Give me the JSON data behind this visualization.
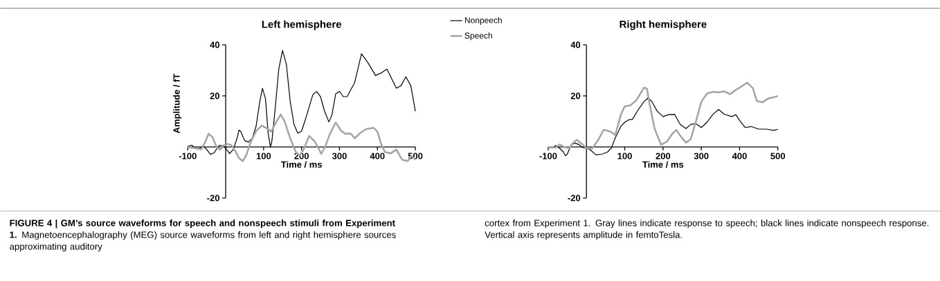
{
  "chart_data": [
    {
      "type": "line",
      "title": "Left hemisphere",
      "xlabel": "Time / ms",
      "ylabel": "Amplitude / fT",
      "xlim": [
        -100,
        500
      ],
      "ylim": [
        -20,
        40
      ],
      "xticks": [
        -100,
        100,
        200,
        300,
        400,
        500
      ],
      "yticks": [
        -20,
        20,
        40
      ],
      "legend": "right",
      "series": [
        {
          "name": "Nonpeech",
          "color": "#000000",
          "x": [
            -100,
            -90,
            -80,
            -70,
            -60,
            -50,
            -40,
            -30,
            -20,
            -15,
            -5,
            5,
            10,
            20,
            30,
            35,
            40,
            50,
            60,
            70,
            80,
            90,
            97,
            105,
            112,
            118,
            122,
            130,
            140,
            150,
            160,
            170,
            180,
            190,
            200,
            210,
            230,
            240,
            250,
            260,
            272,
            280,
            290,
            300,
            310,
            320,
            340,
            358,
            375,
            395,
            410,
            425,
            440,
            450,
            462,
            475,
            488,
            500
          ],
          "values": [
            0.3,
            0.7,
            -0.4,
            -0.7,
            0.5,
            -1,
            -2.9,
            -2.2,
            0.2,
            0.7,
            0.3,
            -1.5,
            -2.6,
            -1,
            3.4,
            6.6,
            6,
            2.5,
            1.9,
            3.4,
            8,
            17.9,
            23,
            18.8,
            5.2,
            0,
            2.5,
            14.3,
            30.6,
            37.8,
            32.4,
            17.9,
            8.9,
            5.4,
            6.2,
            10.7,
            20.6,
            21.7,
            19.7,
            14.3,
            9.8,
            12.5,
            20.8,
            21.8,
            19.7,
            19.7,
            25.2,
            36.5,
            33,
            28,
            29,
            30.5,
            26,
            23,
            24,
            27.5,
            24,
            14
          ]
        },
        {
          "name": "Speech",
          "color": "#a6a6a6",
          "x": [
            -100,
            -80,
            -65,
            -55,
            -45,
            -35,
            -25,
            -15,
            -5,
            5,
            15,
            25,
            35,
            45,
            55,
            65,
            80,
            95,
            110,
            120,
            130,
            145,
            155,
            170,
            185,
            195,
            205,
            220,
            235,
            245,
            252,
            262,
            275,
            290,
            305,
            315,
            330,
            340,
            355,
            370,
            390,
            400,
            410,
            420,
            435,
            450,
            465,
            480,
            490,
            500
          ],
          "values": [
            0,
            -0.5,
            -1,
            1.6,
            5.2,
            3.9,
            0.3,
            -1.1,
            0.7,
            1.2,
            0.7,
            -1.5,
            -4.3,
            -5.6,
            -2.9,
            1.6,
            6.2,
            8.4,
            7.2,
            6,
            8.9,
            12.7,
            10.2,
            3.4,
            -2,
            -3.3,
            -1.1,
            4.3,
            2.1,
            -0.6,
            -2.7,
            0,
            5.2,
            9.6,
            6.2,
            5.2,
            5.2,
            3.4,
            5.5,
            7,
            7.5,
            6,
            1,
            -2,
            -2.5,
            -1,
            -5,
            -5.5,
            -3.5,
            -5
          ]
        }
      ],
      "annotations": [
        "**FIGURE 4 | GM’s source waveforms for speech and nonspeech stimuli from Experiment 1.** Magnetoencephalography (MEG) source waveforms from left and right hemisphere sources approximating auditory"
      ]
    },
    {
      "type": "line",
      "title": "Right hemisphere",
      "xlabel": "Time / ms",
      "xlim": [
        -100,
        500
      ],
      "ylim": [
        -20,
        40
      ],
      "xticks": [
        -100,
        100,
        200,
        300,
        400,
        500
      ],
      "yticks": [
        -20,
        20,
        40
      ],
      "series": [
        {
          "color": "#000000",
          "x": [
            -100,
            -90,
            -80,
            -70,
            -60,
            -55,
            -50,
            -40,
            -30,
            -20,
            -10,
            0,
            10,
            25,
            40,
            55,
            65,
            75,
            90,
            100,
            110,
            120,
            135,
            150,
            160,
            170,
            185,
            200,
            215,
            230,
            245,
            260,
            272,
            285,
            300,
            315,
            330,
            345,
            360,
            380,
            390,
            400,
            415,
            430,
            450,
            470,
            490,
            500
          ],
          "values": [
            -0.2,
            -0.4,
            0.6,
            -0.5,
            -2,
            -3.4,
            -2.8,
            0.9,
            1.5,
            1,
            -0.2,
            -0.4,
            -1.1,
            -3.1,
            -2.8,
            -2,
            -0.4,
            3.5,
            8.1,
            9.7,
            10.6,
            10.8,
            14.5,
            17.7,
            19.1,
            18,
            14,
            11.9,
            12.7,
            12.8,
            8.8,
            7.2,
            8.8,
            9.2,
            7.6,
            9.7,
            12.7,
            14.7,
            12.8,
            11.9,
            12.7,
            10.4,
            7.6,
            8,
            7,
            7,
            6.5,
            7
          ]
        },
        {
          "color": "#a6a6a6",
          "x": [
            -100,
            -80,
            -70,
            -55,
            -45,
            -35,
            -25,
            -15,
            0,
            15,
            30,
            45,
            55,
            65,
            75,
            90,
            100,
            115,
            130,
            150,
            158,
            165,
            178,
            195,
            210,
            225,
            235,
            245,
            260,
            272,
            285,
            300,
            315,
            330,
            345,
            360,
            375,
            390,
            405,
            420,
            435,
            445,
            460,
            475,
            490,
            500
          ],
          "values": [
            -0.2,
            -0.2,
            1,
            -0.2,
            -0.4,
            1.6,
            2.8,
            1.6,
            -0.4,
            -0.6,
            2.6,
            6.7,
            6.4,
            5.8,
            4.6,
            12.7,
            15.9,
            16.3,
            18.2,
            23.2,
            22.8,
            16.8,
            7.2,
            0.9,
            2.1,
            5.3,
            6.7,
            4.4,
            1.7,
            3,
            9.4,
            17.7,
            20.9,
            21.6,
            21.4,
            21.8,
            20.7,
            22.3,
            23.7,
            25.2,
            23,
            18,
            17.5,
            19,
            19.5,
            20
          ]
        }
      ],
      "annotations": [
        "cortex from Experiment 1. Gray lines indicate response to speech; black lines indicate nonspeech response. Vertical axis represents amplitude in femtoTesla."
      ]
    }
  ]
}
